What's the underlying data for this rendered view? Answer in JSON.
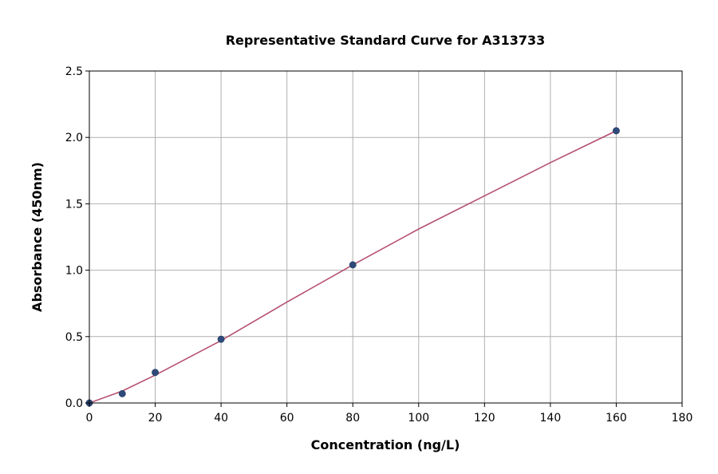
{
  "chart_data": {
    "type": "scatter",
    "title": "Representative Standard Curve for A313733",
    "xlabel": "Concentration (ng/L)",
    "ylabel": "Absorbance (450nm)",
    "xlim": [
      0,
      180
    ],
    "ylim": [
      0,
      2.5
    ],
    "xticks": [
      0,
      20,
      40,
      60,
      80,
      100,
      120,
      140,
      160,
      180
    ],
    "yticks": [
      0.0,
      0.5,
      1.0,
      1.5,
      2.0,
      2.5
    ],
    "xtick_labels": [
      "0",
      "20",
      "40",
      "60",
      "80",
      "100",
      "120",
      "140",
      "160",
      "180"
    ],
    "ytick_labels": [
      "0.0",
      "0.5",
      "1.0",
      "1.5",
      "2.0",
      "2.5"
    ],
    "grid": true,
    "series": [
      {
        "kind": "points",
        "x": [
          0,
          10,
          20,
          40,
          80,
          160
        ],
        "y": [
          0.0,
          0.07,
          0.23,
          0.48,
          1.04,
          2.05
        ],
        "color": "#2e4a7a"
      },
      {
        "kind": "fit-line",
        "x": [
          0,
          10,
          20,
          40,
          60,
          80,
          100,
          120,
          140,
          160
        ],
        "y": [
          0.0,
          0.09,
          0.21,
          0.47,
          0.76,
          1.04,
          1.31,
          1.56,
          1.81,
          2.05
        ],
        "color": "#b5506f"
      }
    ]
  }
}
